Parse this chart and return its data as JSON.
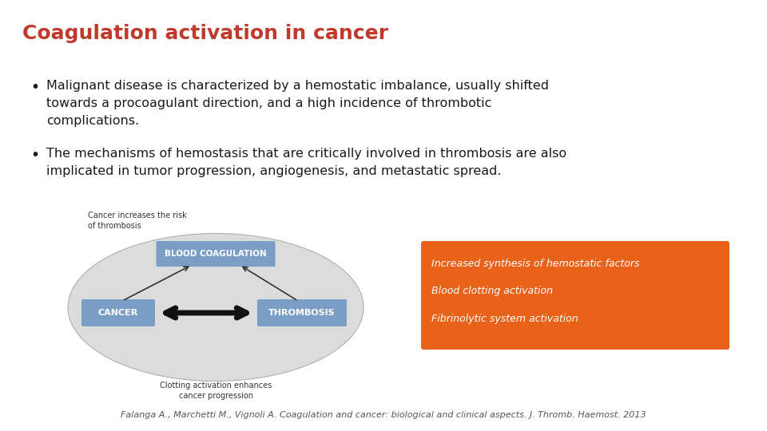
{
  "title": "Coagulation activation in cancer",
  "title_color": "#C0392B",
  "title_fontsize": 18,
  "bullet1_line1": "Malignant disease is characterized by a hemostatic imbalance, usually shifted",
  "bullet1_line2": "towards a procoagulant direction, and a high incidence of thrombotic",
  "bullet1_line3": "complications.",
  "bullet2_line1": "The mechanisms of hemostasis that are critically involved in thrombosis are also",
  "bullet2_line2": "implicated in tumor progression, angiogenesis, and metastatic spread.",
  "orange_box_lines": [
    "Increased synthesis of hemostatic factors",
    "Blood clotting activation",
    "Fibrinolytic system activation"
  ],
  "orange_box_color": "#E8621A",
  "orange_text_color": "#FFFFFF",
  "footnote": "Falanga A., Marchetti M., Vignoli A. Coagulation and cancer: biological and clinical aspects. J. Thromb. Haemost. 2013",
  "bg_color": "#FFFFFF",
  "text_color": "#1a1a1a",
  "bullet_fontsize": 11.5,
  "footnote_fontsize": 8,
  "diagram_top_label": "Cancer increases the risk\nof thrombosis",
  "diagram_bottom_label": "Clotting activation enhances\ncancer progression",
  "diagram_ellipse_color": "#DCDCDC",
  "diagram_box_color": "#7B9EC7",
  "diagram_box_text_color": "#FFFFFF",
  "diagram_labels": [
    "BLOOD COAGULATION",
    "CANCER",
    "THROMBOSIS"
  ]
}
